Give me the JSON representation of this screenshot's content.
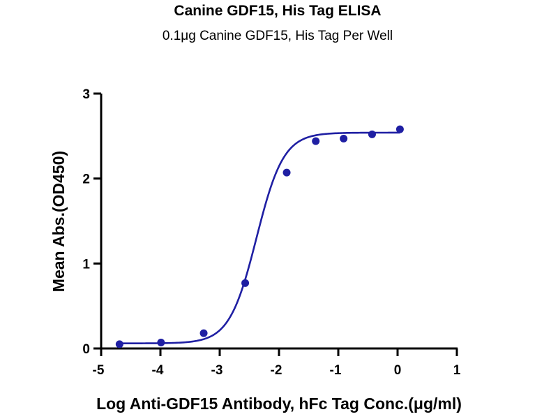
{
  "chart_data": {
    "type": "scatter",
    "title": "Canine GDF15, His Tag ELISA",
    "subtitle": "0.1μg Canine GDF15, His Tag Per Well",
    "xlabel": "Log Anti-GDF15 Antibody, hFc Tag Conc.(μg/ml)",
    "ylabel": "Mean Abs.(OD450)",
    "xlim": [
      -5,
      1
    ],
    "ylim": [
      0,
      3
    ],
    "xticks": [
      -5,
      -4,
      -3,
      -2,
      -1,
      0,
      1
    ],
    "yticks": [
      0,
      1,
      2,
      3
    ],
    "grid": false,
    "legend": "none",
    "colors": {
      "series": "#1f1fa3",
      "axis": "#000000"
    },
    "series": [
      {
        "x": [
          -4.69,
          -3.99,
          -3.27,
          -2.57,
          -1.87,
          -1.38,
          -0.91,
          -0.43,
          0.04
        ],
        "y": [
          0.05,
          0.07,
          0.18,
          0.77,
          2.07,
          2.44,
          2.47,
          2.52,
          2.58
        ]
      }
    ],
    "fit": {
      "model": "4PL",
      "bottom": 0.06,
      "top": 2.54,
      "log_ec50": -2.38,
      "hill": 1.9
    }
  }
}
